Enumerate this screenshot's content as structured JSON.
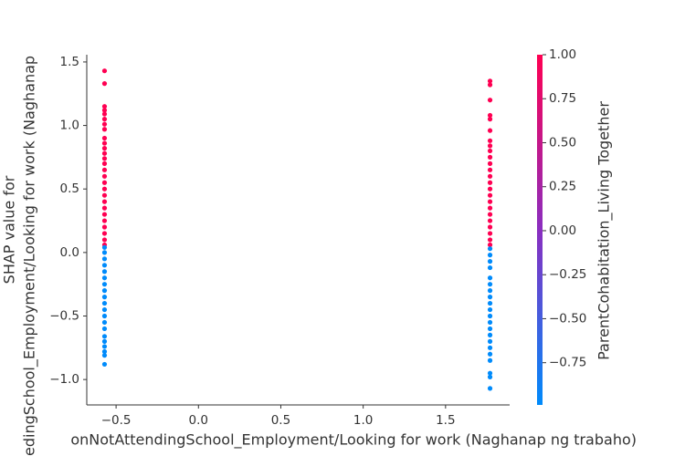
{
  "chart_data": {
    "type": "scatter",
    "xlabel": "onNotAttendingSchool_Employment/Looking for work (Naghanap ng trabaho)",
    "ylabel": [
      "SHAP value for",
      "edingSchool_Employment/Looking for work (Naghanap"
    ],
    "colorbar_label": "ParentCohabitation_Living Together",
    "xlim": [
      -0.678,
      1.889
    ],
    "ylim": [
      -1.2,
      1.557
    ],
    "clim": [
      -0.99,
      1.0
    ],
    "colormap": [
      "#008bfb",
      "#8a2ec0",
      "#ff0052"
    ],
    "xticks": [
      {
        "value": -0.5,
        "label": "−0.5"
      },
      {
        "value": 0,
        "label": "0.0"
      },
      {
        "value": 0.5,
        "label": "0.5"
      },
      {
        "value": 1,
        "label": "1.0"
      },
      {
        "value": 1.5,
        "label": "1.5"
      }
    ],
    "yticks": [
      {
        "value": -1,
        "label": "−1.0"
      },
      {
        "value": -0.5,
        "label": "−0.5"
      },
      {
        "value": 0,
        "label": "0.0"
      },
      {
        "value": 0.5,
        "label": "0.5"
      },
      {
        "value": 1,
        "label": "1.0"
      },
      {
        "value": 1.5,
        "label": "1.5"
      }
    ],
    "cticks": [
      {
        "value": -0.75,
        "label": "−0.75"
      },
      {
        "value": -0.5,
        "label": "−0.50"
      },
      {
        "value": -0.25,
        "label": "−0.25"
      },
      {
        "value": 0,
        "label": "0.00"
      },
      {
        "value": 0.25,
        "label": "0.25"
      },
      {
        "value": 0.5,
        "label": "0.50"
      },
      {
        "value": 0.75,
        "label": "0.75"
      },
      {
        "value": 1,
        "label": "1.00"
      }
    ],
    "groups": [
      {
        "x": -0.57,
        "c": 1.0,
        "y": [
          1.43,
          1.33,
          1.15,
          1.12,
          1.09,
          1.05,
          1.01,
          0.97,
          0.9,
          0.86,
          0.82,
          0.78,
          0.74,
          0.7,
          0.65,
          0.6,
          0.55,
          0.5,
          0.45,
          0.4,
          0.35,
          0.3,
          0.25,
          0.2,
          0.15,
          0.1,
          0.06
        ]
      },
      {
        "x": -0.57,
        "c": -0.99,
        "y": [
          0.04,
          0,
          -0.05,
          -0.1,
          -0.15,
          -0.2,
          -0.25,
          -0.3,
          -0.35,
          -0.4,
          -0.45,
          -0.5,
          -0.55,
          -0.6,
          -0.66,
          -0.7,
          -0.74,
          -0.78,
          -0.81,
          -0.88
        ]
      },
      {
        "x": 1.77,
        "c": 1.0,
        "y": [
          1.35,
          1.32,
          1.2,
          1.08,
          1.05,
          0.96,
          0.88,
          0.84,
          0.8,
          0.75,
          0.7,
          0.65,
          0.6,
          0.55,
          0.5,
          0.45,
          0.4,
          0.35,
          0.3,
          0.25,
          0.2,
          0.15,
          0.1,
          0.06
        ]
      },
      {
        "x": 1.77,
        "c": -0.99,
        "y": [
          0.03,
          -0.02,
          -0.07,
          -0.12,
          -0.2,
          -0.25,
          -0.3,
          -0.35,
          -0.4,
          -0.45,
          -0.5,
          -0.55,
          -0.6,
          -0.65,
          -0.7,
          -0.75,
          -0.8,
          -0.85,
          -0.95,
          -0.98,
          -1.07
        ]
      }
    ]
  }
}
